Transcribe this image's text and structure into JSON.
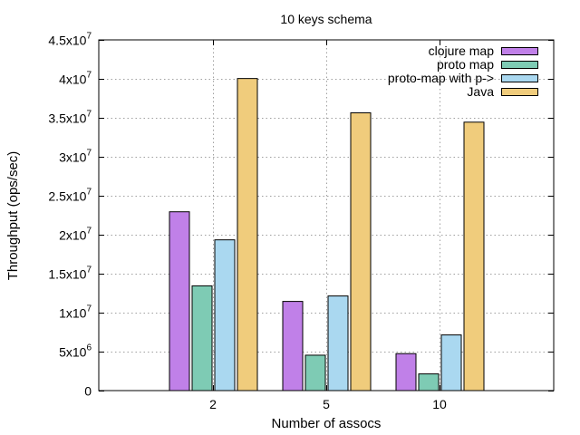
{
  "chart_data": {
    "type": "bar",
    "title": "10 keys schema",
    "xlabel": "Number of assocs",
    "ylabel": "Throughput (ops/sec)",
    "categories": [
      "2",
      "5",
      "10"
    ],
    "ylim": [
      0,
      45000000
    ],
    "yticks": [
      {
        "value": 0,
        "mantissa": "0",
        "exp": ""
      },
      {
        "value": 5000000,
        "mantissa": "5x10",
        "exp": "6"
      },
      {
        "value": 10000000,
        "mantissa": "1x10",
        "exp": "7"
      },
      {
        "value": 15000000,
        "mantissa": "1.5x10",
        "exp": "7"
      },
      {
        "value": 20000000,
        "mantissa": "2x10",
        "exp": "7"
      },
      {
        "value": 25000000,
        "mantissa": "2.5x10",
        "exp": "7"
      },
      {
        "value": 30000000,
        "mantissa": "3x10",
        "exp": "7"
      },
      {
        "value": 35000000,
        "mantissa": "3.5x10",
        "exp": "7"
      },
      {
        "value": 40000000,
        "mantissa": "4x10",
        "exp": "7"
      },
      {
        "value": 45000000,
        "mantissa": "4.5x10",
        "exp": "7"
      }
    ],
    "grid": true,
    "legend_position": "top-right",
    "series": [
      {
        "name": "clojure map",
        "color": "#c080e8",
        "values": [
          23000000,
          11500000,
          4800000
        ]
      },
      {
        "name": "proto map",
        "color": "#7ecbb4",
        "values": [
          13500000,
          4600000,
          2200000
        ]
      },
      {
        "name": "proto-map with p->",
        "color": "#aad8f0",
        "values": [
          19400000,
          12200000,
          7200000
        ]
      },
      {
        "name": "Java",
        "color": "#f0cc7c",
        "values": [
          40100000,
          35700000,
          34500000
        ]
      }
    ]
  }
}
